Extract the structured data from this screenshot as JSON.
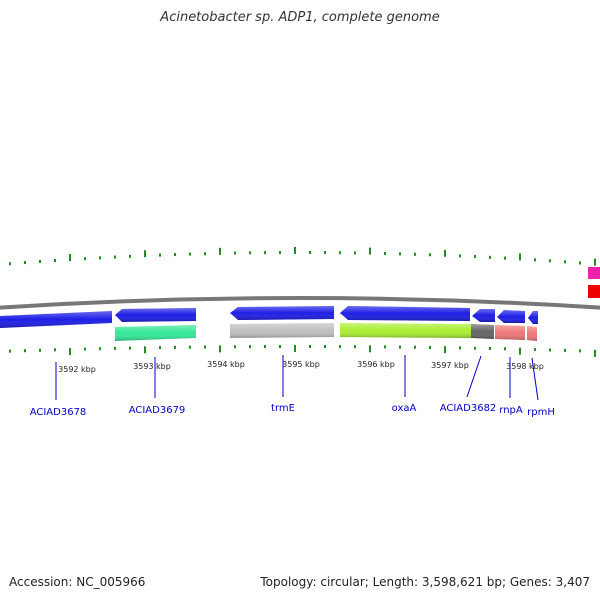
{
  "title": "Acinetobacter sp. ADP1, complete genome",
  "footer": {
    "accession": "Accession: NC_005966",
    "topology": "Topology: circular; Length: 3,598,621 bp; Genes: 3,407"
  },
  "colors": {
    "backbone": "#777777",
    "tick": "#228b22",
    "label": "#0000c8",
    "forward_gene": "#1e1ee6",
    "ruler_label": "#222222"
  },
  "ruler": {
    "labels": [
      "3592 kbp",
      "3593 kbp",
      "3594 kbp",
      "3595 kbp",
      "3596 kbp",
      "3597 kbp",
      "3598 kbp"
    ]
  },
  "genes": [
    {
      "name": "ACIAD3678",
      "strand": "forward",
      "color": "#1e1ee6"
    },
    {
      "name": "ACIAD3679",
      "strand": "reverse",
      "color": "#1e1ee6",
      "color2": "#33e899"
    },
    {
      "name": "trmE",
      "strand": "reverse",
      "color": "#1e1ee6",
      "color2": "#c0c0c0"
    },
    {
      "name": "oxaA",
      "strand": "reverse",
      "color": "#1e1ee6",
      "color2": "#aaee33"
    },
    {
      "name": "ACIAD3682",
      "strand": "reverse",
      "color": "#1e1ee6",
      "color2": "#666666"
    },
    {
      "name": "rnpA",
      "strand": "reverse",
      "color": "#1e1ee6",
      "color2": "#ee7777"
    },
    {
      "name": "rpmH",
      "strand": "reverse",
      "color": "#1e1ee6",
      "color2": "#ee7777"
    }
  ],
  "edge_features": [
    {
      "name": "pink-feature",
      "color": "#ee22aa"
    },
    {
      "name": "red-feature",
      "color": "#ee0000"
    }
  ]
}
